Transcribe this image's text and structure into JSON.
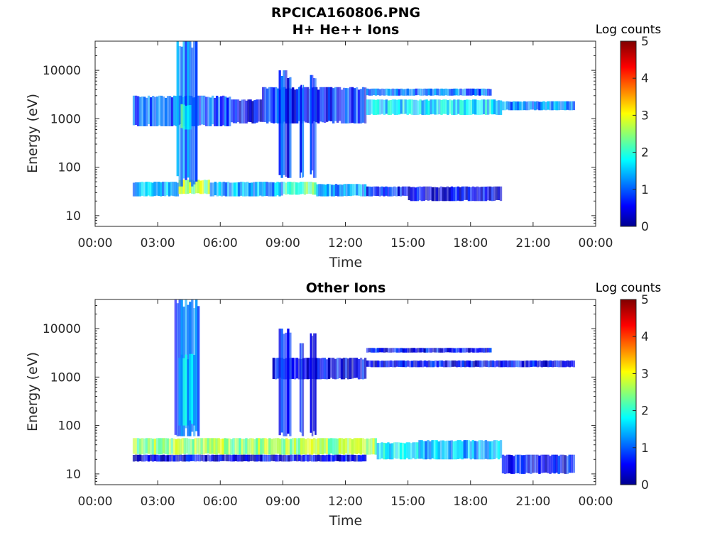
{
  "figure": {
    "title_line1": "RPCICA160806.PNG"
  },
  "colorbar": {
    "label": "Log counts",
    "ticks": [
      "0",
      "1",
      "2",
      "3",
      "4",
      "5"
    ],
    "range": [
      0,
      5
    ],
    "colormap": "jet"
  },
  "chart_data": [
    {
      "type": "heatmap",
      "title": "H+ He++ Ions",
      "xlabel": "Time",
      "ylabel": "Energy (eV)",
      "x_ticks": [
        "00:00",
        "03:00",
        "06:00",
        "09:00",
        "12:00",
        "15:00",
        "18:00",
        "21:00",
        "00:00"
      ],
      "x_range_hours": [
        0,
        24
      ],
      "y_scale": "log",
      "y_ticks": [
        "10",
        "100",
        "1000",
        "10000"
      ],
      "y_range": [
        6,
        40000
      ],
      "data_start_hour": 1.8,
      "data_end_hour": 23.0,
      "regions": [
        {
          "t": [
            1.8,
            4.0
          ],
          "e": [
            25,
            50
          ],
          "level": 1.5
        },
        {
          "t": [
            4.0,
            5.5
          ],
          "e": [
            28,
            55
          ],
          "level": 2.7
        },
        {
          "t": [
            5.5,
            9.0
          ],
          "e": [
            25,
            50
          ],
          "level": 1.4
        },
        {
          "t": [
            9.0,
            10.6
          ],
          "e": [
            27,
            50
          ],
          "level": 2.3
        },
        {
          "t": [
            10.6,
            13.0
          ],
          "e": [
            25,
            45
          ],
          "level": 1.3
        },
        {
          "t": [
            13.0,
            15.0
          ],
          "e": [
            25,
            40
          ],
          "level": 0.7
        },
        {
          "t": [
            15.0,
            19.5
          ],
          "e": [
            20,
            40
          ],
          "level": 0.5
        },
        {
          "t": [
            1.8,
            6.5
          ],
          "e": [
            700,
            3000
          ],
          "level": 1.0
        },
        {
          "t": [
            6.5,
            8.0
          ],
          "e": [
            800,
            2500
          ],
          "level": 0.5
        },
        {
          "t": [
            8.0,
            13.0
          ],
          "e": [
            800,
            4500
          ],
          "level": 0.8
        },
        {
          "t": [
            13.0,
            19.5
          ],
          "e": [
            1200,
            2500
          ],
          "level": 1.7
        },
        {
          "t": [
            19.5,
            23.0
          ],
          "e": [
            1500,
            2300
          ],
          "level": 1.3
        },
        {
          "t": [
            13.0,
            19.0
          ],
          "e": [
            3000,
            4200
          ],
          "level": 1.1
        },
        {
          "t": [
            3.9,
            4.9
          ],
          "e": [
            40,
            40000
          ],
          "level": 1.2
        },
        {
          "t": [
            4.1,
            4.6
          ],
          "e": [
            600,
            2000
          ],
          "level": 2.0
        },
        {
          "t": [
            8.8,
            9.4
          ],
          "e": [
            60,
            10000
          ],
          "level": 0.8
        },
        {
          "t": [
            9.8,
            10.0
          ],
          "e": [
            60,
            5000
          ],
          "level": 0.8
        },
        {
          "t": [
            10.3,
            10.6
          ],
          "e": [
            60,
            8000
          ],
          "level": 0.9
        }
      ]
    },
    {
      "type": "heatmap",
      "title": "Other Ions",
      "xlabel": "Time",
      "ylabel": "Energy (eV)",
      "x_ticks": [
        "00:00",
        "03:00",
        "06:00",
        "09:00",
        "12:00",
        "15:00",
        "18:00",
        "21:00",
        "00:00"
      ],
      "x_range_hours": [
        0,
        24
      ],
      "y_scale": "log",
      "y_ticks": [
        "10",
        "100",
        "1000",
        "10000"
      ],
      "y_range": [
        6,
        40000
      ],
      "data_start_hour": 1.8,
      "data_end_hour": 23.0,
      "regions": [
        {
          "t": [
            1.8,
            13.5
          ],
          "e": [
            25,
            55
          ],
          "level": 2.6
        },
        {
          "t": [
            13.5,
            15.5
          ],
          "e": [
            20,
            45
          ],
          "level": 1.8
        },
        {
          "t": [
            15.5,
            19.5
          ],
          "e": [
            20,
            50
          ],
          "level": 1.5
        },
        {
          "t": [
            19.5,
            23.0
          ],
          "e": [
            10,
            25
          ],
          "level": 0.6
        },
        {
          "t": [
            1.8,
            13.0
          ],
          "e": [
            18,
            25
          ],
          "level": 0.5
        },
        {
          "t": [
            3.8,
            5.0
          ],
          "e": [
            60,
            40000
          ],
          "level": 1.0
        },
        {
          "t": [
            4.0,
            4.8
          ],
          "e": [
            100,
            3000
          ],
          "level": 1.6
        },
        {
          "t": [
            8.5,
            13.0
          ],
          "e": [
            900,
            2500
          ],
          "level": 0.6
        },
        {
          "t": [
            13.0,
            23.0
          ],
          "e": [
            1600,
            2200
          ],
          "level": 0.6
        },
        {
          "t": [
            13.0,
            19.0
          ],
          "e": [
            3200,
            4000
          ],
          "level": 0.6
        },
        {
          "t": [
            8.8,
            9.4
          ],
          "e": [
            60,
            10000
          ],
          "level": 0.7
        },
        {
          "t": [
            9.8,
            10.0
          ],
          "e": [
            60,
            5000
          ],
          "level": 0.7
        },
        {
          "t": [
            10.3,
            10.6
          ],
          "e": [
            60,
            8000
          ],
          "level": 0.8
        }
      ]
    }
  ]
}
